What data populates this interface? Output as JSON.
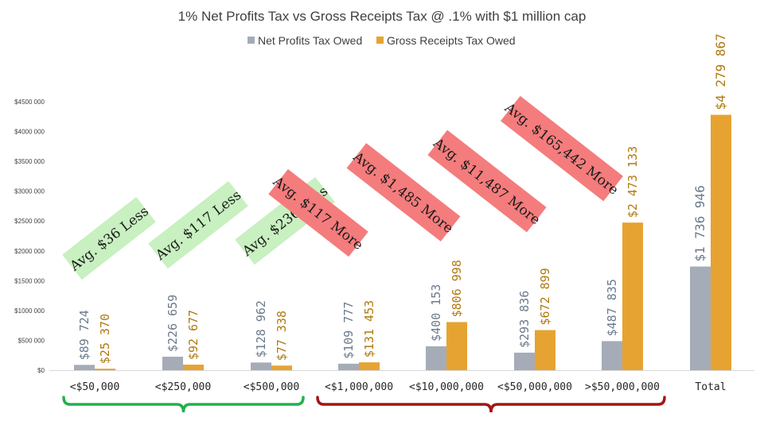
{
  "chart_data": {
    "type": "bar",
    "title": "1% Net Profits Tax vs Gross Receipts Tax @ .1% with $1 million cap",
    "legend_position": "top",
    "categories": [
      "<$50,000",
      "<$250,000",
      "<$500,000",
      "<$1,000,000",
      "<$10,000,000",
      "<$50,000,000",
      ">$50,000,000",
      "Total"
    ],
    "series": [
      {
        "name": "Net Profits Tax Owed",
        "color": "#A5ACB8",
        "values": [
          89724,
          226659,
          128962,
          109777,
          400153,
          293836,
          487835,
          1736946
        ],
        "labels": [
          "$89 724",
          "$226 659",
          "$128 962",
          "$109 777",
          "$400 153",
          "$293 836",
          "$487 835",
          "$1 736 946"
        ],
        "label_color": "#6B7A8C"
      },
      {
        "name": "Gross Receipts Tax Owed",
        "color": "#E6A332",
        "values": [
          25370,
          92677,
          77338,
          131453,
          806998,
          672899,
          2473133,
          4279867
        ],
        "labels": [
          "$25 370",
          "$92 677",
          "$77 338",
          "$131 453",
          "$806 998",
          "$672 899",
          "$2 473 133",
          "$4 279 867"
        ],
        "label_color": "#B07A10"
      }
    ],
    "ylim": [
      0,
      4500000
    ],
    "yticks": [
      0,
      500000,
      1000000,
      1500000,
      2000000,
      2500000,
      3000000,
      3500000,
      4000000,
      4500000
    ],
    "ytick_labels": [
      "$0",
      "$500 000",
      "$1000 000",
      "$1500 000",
      "$2000 000",
      "$2500 000",
      "$3000 000",
      "$3500 000",
      "$4000 000",
      "$4500 000"
    ],
    "grid": false,
    "annotations": [
      {
        "text": "Avg. $36 Less",
        "kind": "less",
        "color": "#C8F0C0"
      },
      {
        "text": "Avg. $117 Less",
        "kind": "less",
        "color": "#C8F0C0"
      },
      {
        "text": "Avg. $236 Less",
        "kind": "less",
        "color": "#C8F0C0"
      },
      {
        "text": "Avg. $117 More",
        "kind": "more",
        "color": "#F47C7C"
      },
      {
        "text": "Avg. $1,485 More",
        "kind": "more",
        "color": "#F47C7C"
      },
      {
        "text": "Avg. $11,487 More",
        "kind": "more",
        "color": "#F47C7C"
      },
      {
        "text": "Avg. $165,442 More",
        "kind": "more",
        "color": "#F47C7C"
      }
    ],
    "brackets": [
      {
        "covers": [
          "<$50,000",
          "<$250,000",
          "<$500,000"
        ],
        "color": "#22B14C"
      },
      {
        "covers": [
          "<$1,000,000",
          "<$10,000,000",
          "<$50,000,000",
          ">$50,000,000"
        ],
        "color": "#A31515"
      }
    ]
  }
}
